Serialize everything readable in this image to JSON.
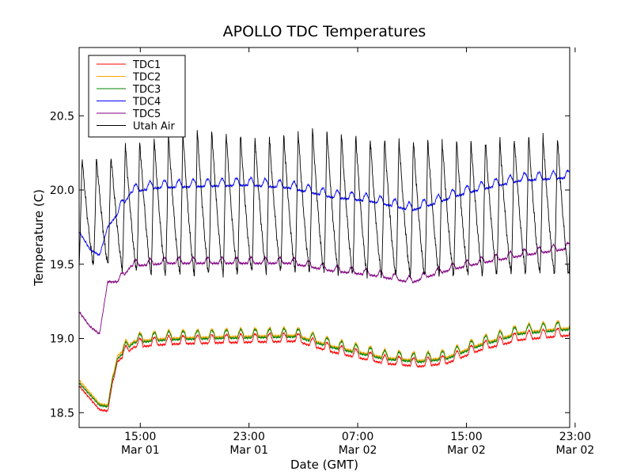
{
  "chart_data": {
    "type": "line",
    "title": "APOLLO TDC Temperatures",
    "xlabel": "Date (GMT)",
    "ylabel": "Temperature (C)",
    "xlim_hours": [
      10.5,
      46.6
    ],
    "ylim": [
      18.4,
      20.96
    ],
    "grid": false,
    "legend_position": "top-left",
    "y_ticks": [
      {
        "value": 18.5,
        "label": "18.5"
      },
      {
        "value": 19.0,
        "label": "19.0"
      },
      {
        "value": 19.5,
        "label": "19.5"
      },
      {
        "value": 20.0,
        "label": "20.0"
      },
      {
        "value": 20.5,
        "label": "20.5"
      }
    ],
    "x_ticks": [
      {
        "hours": 15,
        "time": "15:00",
        "date": "Mar 01"
      },
      {
        "hours": 23,
        "time": "23:00",
        "date": "Mar 01"
      },
      {
        "hours": 31,
        "time": "07:00",
        "date": "Mar 02"
      },
      {
        "hours": 39,
        "time": "15:00",
        "date": "Mar 02"
      },
      {
        "hours": 47,
        "time": "23:00",
        "date": "Mar 02"
      }
    ],
    "series": [
      {
        "name": "TDC1",
        "color": "#ff0000",
        "cycle_amp": 0.055,
        "cycle_phase": 0.0,
        "base": [
          [
            10.5,
            18.68
          ],
          [
            12.0,
            18.52
          ],
          [
            12.6,
            18.51
          ],
          [
            13.3,
            18.86
          ],
          [
            14.5,
            18.96
          ],
          [
            17.0,
            18.98
          ],
          [
            21.0,
            18.99
          ],
          [
            26.5,
            19.0
          ],
          [
            29.0,
            18.93
          ],
          [
            33.0,
            18.85
          ],
          [
            35.5,
            18.83
          ],
          [
            37.5,
            18.85
          ],
          [
            40.0,
            18.94
          ],
          [
            43.0,
            19.01
          ],
          [
            46.6,
            19.04
          ]
        ]
      },
      {
        "name": "TDC2",
        "color": "#ffa500",
        "cycle_amp": 0.055,
        "cycle_phase": 0.0,
        "base": [
          [
            10.5,
            18.72
          ],
          [
            12.0,
            18.56
          ],
          [
            12.6,
            18.55
          ],
          [
            13.3,
            18.9
          ],
          [
            14.5,
            19.0
          ],
          [
            17.0,
            19.02
          ],
          [
            21.0,
            19.03
          ],
          [
            26.5,
            19.04
          ],
          [
            29.0,
            18.97
          ],
          [
            33.0,
            18.89
          ],
          [
            35.5,
            18.87
          ],
          [
            37.5,
            18.89
          ],
          [
            40.0,
            18.98
          ],
          [
            43.0,
            19.06
          ],
          [
            46.6,
            19.09
          ]
        ]
      },
      {
        "name": "TDC3",
        "color": "#008000",
        "cycle_amp": 0.055,
        "cycle_phase": 0.0,
        "base": [
          [
            10.5,
            18.7
          ],
          [
            12.0,
            18.55
          ],
          [
            12.6,
            18.54
          ],
          [
            13.3,
            18.88
          ],
          [
            14.5,
            18.99
          ],
          [
            17.0,
            19.01
          ],
          [
            21.0,
            19.02
          ],
          [
            26.5,
            19.03
          ],
          [
            29.0,
            18.96
          ],
          [
            33.0,
            18.88
          ],
          [
            35.5,
            18.86
          ],
          [
            37.5,
            18.88
          ],
          [
            40.0,
            18.97
          ],
          [
            43.0,
            19.05
          ],
          [
            46.6,
            19.08
          ]
        ]
      },
      {
        "name": "TDC4",
        "color": "#0000ff",
        "cycle_amp": 0.05,
        "cycle_phase": 0.3,
        "base": [
          [
            10.5,
            19.72
          ],
          [
            11.3,
            19.6
          ],
          [
            12.0,
            19.56
          ],
          [
            12.6,
            19.75
          ],
          [
            13.5,
            19.88
          ],
          [
            14.3,
            20.0
          ],
          [
            16.0,
            20.03
          ],
          [
            19.0,
            20.04
          ],
          [
            23.0,
            20.05
          ],
          [
            26.0,
            20.03
          ],
          [
            29.0,
            19.97
          ],
          [
            32.0,
            19.94
          ],
          [
            35.0,
            19.88
          ],
          [
            36.5,
            19.92
          ],
          [
            38.0,
            19.97
          ],
          [
            40.0,
            20.02
          ],
          [
            43.0,
            20.08
          ],
          [
            46.6,
            20.1
          ]
        ]
      },
      {
        "name": "TDC5",
        "color": "#800080",
        "cycle_amp": 0.04,
        "cycle_phase": 0.3,
        "base": [
          [
            10.5,
            19.18
          ],
          [
            11.3,
            19.08
          ],
          [
            12.0,
            19.03
          ],
          [
            12.6,
            19.38
          ],
          [
            13.5,
            19.4
          ],
          [
            14.3,
            19.5
          ],
          [
            17.0,
            19.52
          ],
          [
            23.0,
            19.52
          ],
          [
            26.0,
            19.52
          ],
          [
            29.0,
            19.47
          ],
          [
            32.0,
            19.44
          ],
          [
            35.0,
            19.39
          ],
          [
            36.5,
            19.44
          ],
          [
            38.0,
            19.48
          ],
          [
            40.0,
            19.52
          ],
          [
            43.0,
            19.57
          ],
          [
            46.6,
            19.62
          ]
        ]
      },
      {
        "name": "Utah Air",
        "color": "#000000",
        "cycle_period_hours": 1.06,
        "cycle_phase": 0.0,
        "peaks": [
          [
            12.5,
            20.22
          ],
          [
            14.0,
            20.32
          ],
          [
            16.0,
            20.36
          ],
          [
            20.0,
            20.42
          ],
          [
            24.0,
            20.36
          ],
          [
            28.0,
            20.42
          ],
          [
            32.0,
            20.36
          ],
          [
            36.0,
            20.34
          ],
          [
            40.0,
            20.34
          ],
          [
            44.0,
            20.38
          ],
          [
            46.6,
            20.36
          ]
        ],
        "troughs": [
          [
            10.7,
            19.5
          ],
          [
            12.5,
            19.5
          ],
          [
            14.0,
            19.46
          ],
          [
            16.0,
            19.43
          ],
          [
            20.0,
            19.43
          ],
          [
            24.0,
            19.45
          ],
          [
            28.0,
            19.45
          ],
          [
            32.0,
            19.42
          ],
          [
            36.0,
            19.42
          ],
          [
            40.0,
            19.43
          ],
          [
            44.0,
            19.44
          ],
          [
            46.6,
            19.43
          ]
        ]
      }
    ]
  }
}
